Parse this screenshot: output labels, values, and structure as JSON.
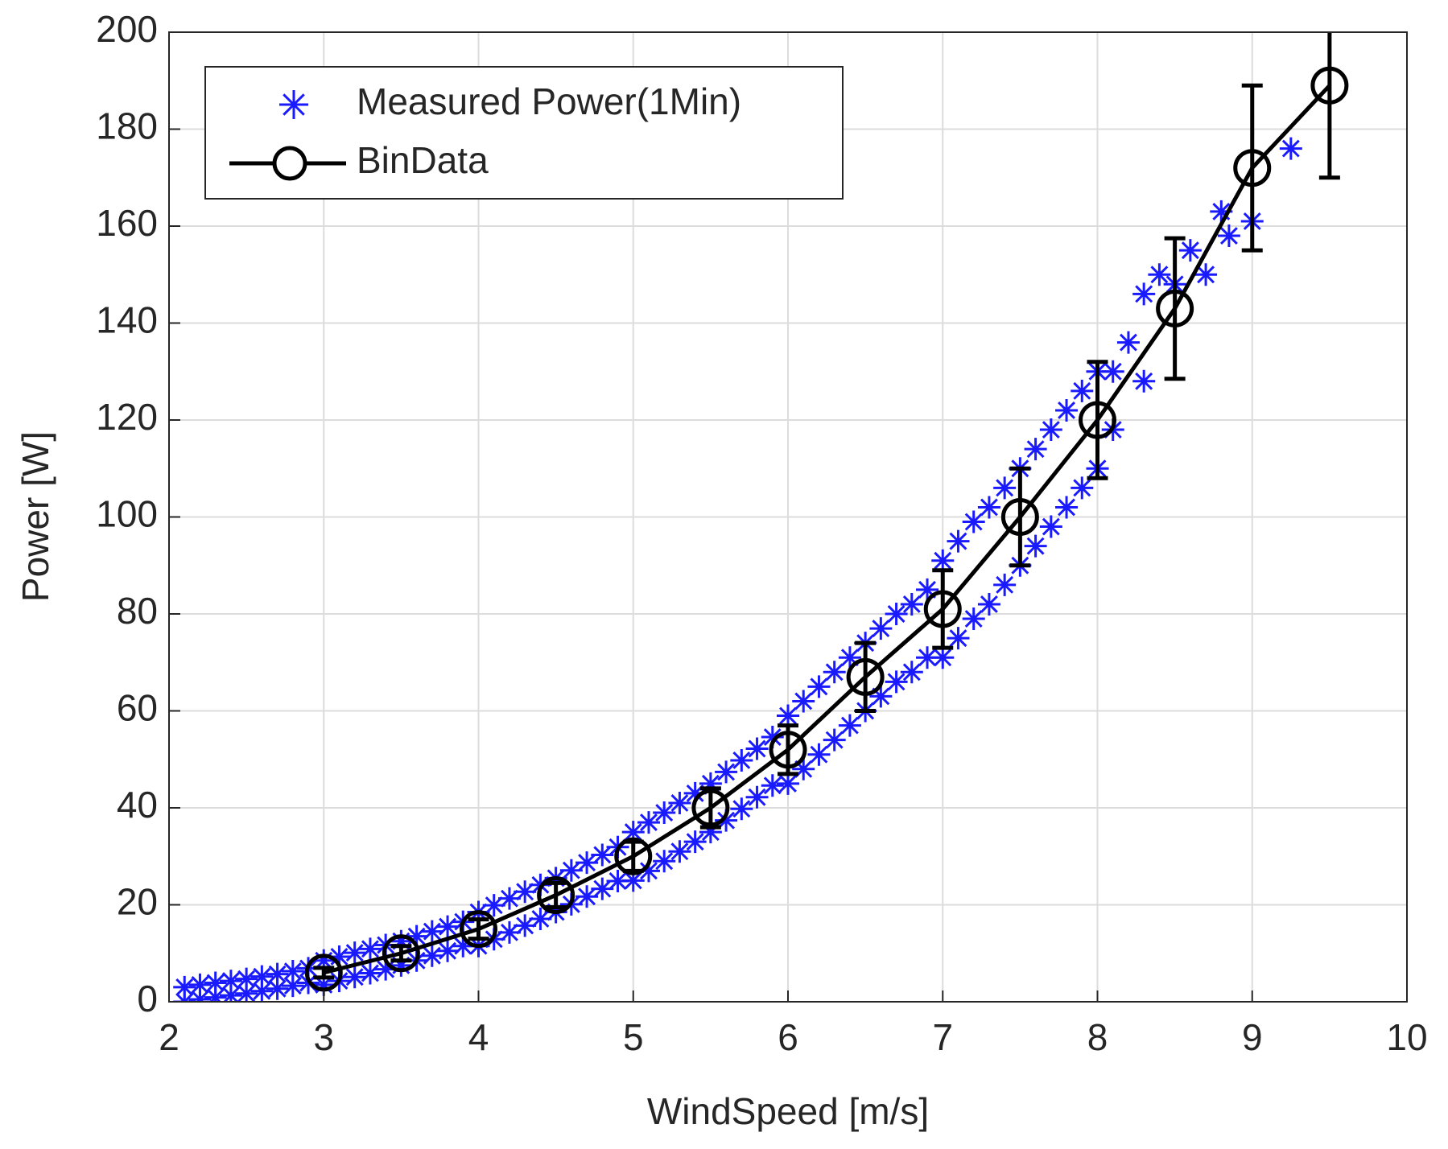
{
  "chart_data": {
    "type": "scatter",
    "xlabel": "WindSpeed [m/s]",
    "ylabel": "Power [W]",
    "xlim": [
      2,
      10
    ],
    "ylim": [
      0,
      200
    ],
    "xticks": [
      2,
      3,
      4,
      5,
      6,
      7,
      8,
      9,
      10
    ],
    "yticks": [
      0,
      20,
      40,
      60,
      80,
      100,
      120,
      140,
      160,
      180,
      200
    ],
    "grid": true,
    "legend": "upper left",
    "series": [
      {
        "name": "Measured Power(1Min)",
        "type": "scatter",
        "marker": "*",
        "color": "#1a1aff",
        "x": [
          2.1,
          2.1,
          2.2,
          2.2,
          2.3,
          2.3,
          2.4,
          2.4,
          2.5,
          2.5,
          2.6,
          2.6,
          2.7,
          2.7,
          2.8,
          2.8,
          2.9,
          2.9,
          3.0,
          3.0,
          3.1,
          3.1,
          3.2,
          3.2,
          3.3,
          3.3,
          3.4,
          3.4,
          3.5,
          3.5,
          3.6,
          3.6,
          3.7,
          3.7,
          3.8,
          3.8,
          3.9,
          3.9,
          4.0,
          4.0,
          4.1,
          4.1,
          4.2,
          4.2,
          4.3,
          4.3,
          4.4,
          4.4,
          4.5,
          4.5,
          4.6,
          4.6,
          4.7,
          4.7,
          4.8,
          4.8,
          4.9,
          4.9,
          5.0,
          5.0,
          5.1,
          5.1,
          5.2,
          5.2,
          5.3,
          5.3,
          5.4,
          5.4,
          5.5,
          5.5,
          5.6,
          5.6,
          5.7,
          5.7,
          5.8,
          5.8,
          5.9,
          5.9,
          6.0,
          6.0,
          6.1,
          6.1,
          6.2,
          6.2,
          6.3,
          6.3,
          6.4,
          6.4,
          6.5,
          6.5,
          6.6,
          6.6,
          6.7,
          6.7,
          6.8,
          6.8,
          6.9,
          6.9,
          7.0,
          7.0,
          7.1,
          7.1,
          7.2,
          7.2,
          7.3,
          7.3,
          7.4,
          7.4,
          7.5,
          7.5,
          7.6,
          7.6,
          7.7,
          7.7,
          7.8,
          7.8,
          7.9,
          7.9,
          8.0,
          8.0,
          8.1,
          8.1,
          8.2,
          8.3,
          8.3,
          8.4,
          8.5,
          8.6,
          8.7,
          8.8,
          8.85,
          9.0,
          9.25
        ],
        "values": [
          3,
          0,
          3.5,
          0.5,
          3.9,
          0.9,
          4.3,
          1.3,
          4.7,
          1.7,
          5.2,
          2.2,
          5.7,
          2.7,
          6.3,
          3.3,
          6.9,
          3.9,
          8.5,
          3.5,
          9.3,
          4.3,
          10.1,
          5.1,
          10.9,
          5.9,
          11.7,
          6.7,
          12.5,
          7.5,
          13.5,
          8.5,
          14.5,
          9.5,
          15.5,
          10.5,
          16.5,
          11.5,
          18.5,
          11.5,
          19.9,
          12.9,
          21.3,
          14.3,
          22.7,
          15.7,
          24.1,
          17.1,
          25.5,
          18.5,
          27.1,
          20.1,
          28.7,
          21.7,
          30.3,
          23.3,
          31.9,
          24.9,
          35,
          25,
          37,
          27,
          39,
          29,
          41,
          31,
          43,
          33,
          45,
          35,
          47.4,
          37.4,
          49.8,
          39.8,
          52.2,
          42.2,
          54.6,
          44.6,
          59,
          45,
          62,
          48,
          65,
          51,
          68,
          54,
          71,
          57,
          74,
          60,
          77,
          63,
          80,
          66,
          82,
          68,
          85,
          71,
          91,
          71,
          95,
          75,
          99,
          79,
          102,
          82,
          106,
          86,
          110,
          90,
          114,
          94,
          118,
          98,
          122,
          102,
          126,
          106,
          130,
          110,
          130,
          118,
          136,
          146,
          128,
          150,
          148,
          155,
          150,
          163,
          158,
          161,
          176
        ]
      },
      {
        "name": "BinData",
        "type": "line",
        "marker": "o",
        "color": "#000000",
        "x": [
          3,
          3.5,
          4,
          4.5,
          5,
          5.5,
          6,
          6.5,
          7,
          7.5,
          8,
          8.5,
          9,
          9.5
        ],
        "values": [
          6,
          10,
          15,
          22,
          30,
          40,
          52,
          67,
          81,
          100,
          120,
          143,
          172,
          189
        ],
        "errors": [
          1,
          1.5,
          2,
          2.5,
          3,
          4,
          5,
          7,
          8,
          10,
          12,
          14.5,
          17,
          19
        ]
      }
    ]
  }
}
